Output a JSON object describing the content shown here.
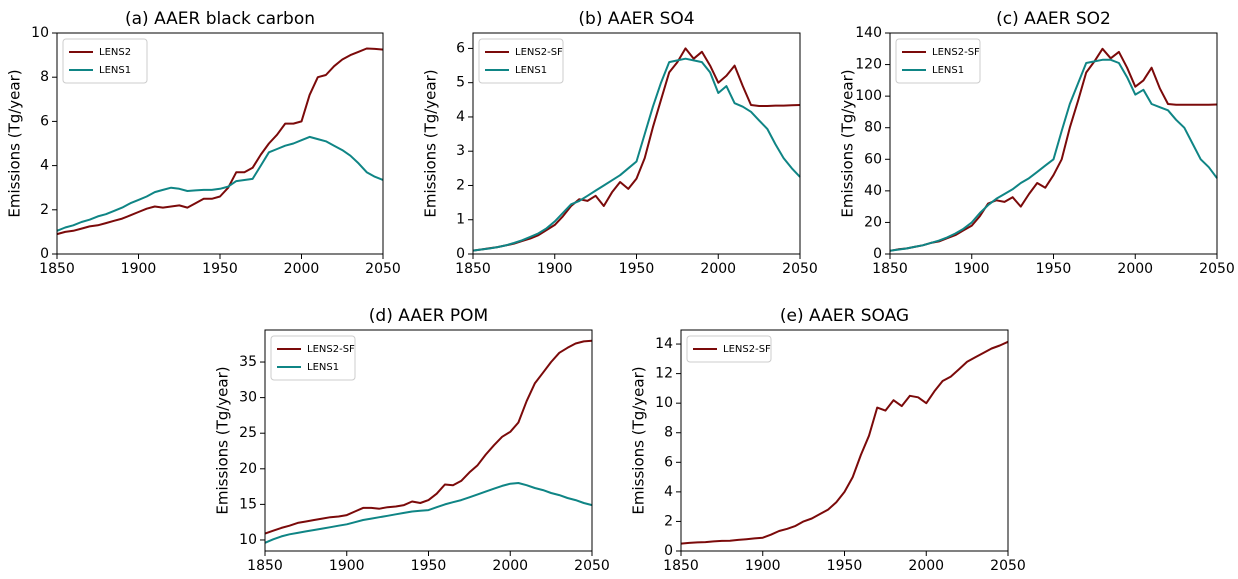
{
  "chart_data": [
    {
      "type": "line",
      "title": "(a) AAER black carbon",
      "y_label": "Emissions (Tg/year)",
      "legend": "upper left",
      "x": [
        1850,
        1855,
        1860,
        1865,
        1870,
        1875,
        1880,
        1885,
        1890,
        1895,
        1900,
        1905,
        1910,
        1915,
        1920,
        1925,
        1930,
        1935,
        1940,
        1945,
        1950,
        1955,
        1960,
        1965,
        1970,
        1975,
        1980,
        1985,
        1990,
        1995,
        2000,
        2005,
        2010,
        2015,
        2020,
        2025,
        2030,
        2035,
        2040,
        2045,
        2050
      ],
      "xlim": [
        1850,
        2050
      ],
      "xticks": [
        1850,
        1900,
        1950,
        2000,
        2050
      ],
      "ylim": [
        0,
        10
      ],
      "yticks": [
        0,
        2,
        4,
        6,
        8,
        10
      ],
      "series": [
        {
          "name": "LENS2",
          "color": "#7b0a0a",
          "values": [
            0.9,
            1.0,
            1.05,
            1.15,
            1.25,
            1.3,
            1.4,
            1.5,
            1.6,
            1.75,
            1.9,
            2.05,
            2.15,
            2.1,
            2.15,
            2.2,
            2.1,
            2.3,
            2.5,
            2.5,
            2.6,
            3.0,
            3.7,
            3.7,
            3.9,
            4.5,
            5.0,
            5.4,
            5.9,
            5.9,
            6.0,
            7.2,
            8.0,
            8.1,
            8.5,
            8.8,
            9.0,
            9.15,
            9.3,
            9.28,
            9.25
          ]
        },
        {
          "name": "LENS1",
          "color": "#0f8585",
          "values": [
            1.05,
            1.2,
            1.3,
            1.45,
            1.55,
            1.7,
            1.8,
            1.95,
            2.1,
            2.3,
            2.45,
            2.6,
            2.8,
            2.9,
            3.0,
            2.95,
            2.85,
            2.88,
            2.9,
            2.9,
            2.95,
            3.05,
            3.3,
            3.35,
            3.4,
            4.0,
            4.6,
            4.75,
            4.9,
            5.0,
            5.15,
            5.3,
            5.2,
            5.1,
            4.9,
            4.7,
            4.45,
            4.1,
            3.7,
            3.5,
            3.35
          ]
        }
      ]
    },
    {
      "type": "line",
      "title": "(b) AAER SO4",
      "y_label": "Emissions (Tg/year)",
      "legend": "upper left",
      "x": [
        1850,
        1855,
        1860,
        1865,
        1870,
        1875,
        1880,
        1885,
        1890,
        1895,
        1900,
        1905,
        1910,
        1915,
        1920,
        1925,
        1930,
        1935,
        1940,
        1945,
        1950,
        1955,
        1960,
        1965,
        1970,
        1975,
        1980,
        1985,
        1990,
        1995,
        2000,
        2005,
        2010,
        2015,
        2020,
        2025,
        2030,
        2035,
        2040,
        2045,
        2050
      ],
      "xlim": [
        1850,
        2050
      ],
      "xticks": [
        1850,
        1900,
        1950,
        2000,
        2050
      ],
      "ylim": [
        0,
        6.45
      ],
      "yticks": [
        0,
        1,
        2,
        3,
        4,
        5,
        6
      ],
      "series": [
        {
          "name": "LENS2-SF",
          "color": "#7b0a0a",
          "values": [
            0.1,
            0.13,
            0.17,
            0.2,
            0.25,
            0.3,
            0.38,
            0.45,
            0.55,
            0.7,
            0.85,
            1.1,
            1.4,
            1.6,
            1.55,
            1.7,
            1.4,
            1.8,
            2.1,
            1.9,
            2.2,
            2.8,
            3.7,
            4.5,
            5.3,
            5.6,
            6.0,
            5.7,
            5.9,
            5.5,
            5.0,
            5.2,
            5.5,
            4.9,
            4.35,
            4.32,
            4.32,
            4.33,
            4.33,
            4.34,
            4.35
          ]
        },
        {
          "name": "LENS1",
          "color": "#0f8585",
          "values": [
            0.1,
            0.13,
            0.16,
            0.2,
            0.25,
            0.32,
            0.4,
            0.5,
            0.6,
            0.75,
            0.95,
            1.2,
            1.45,
            1.55,
            1.7,
            1.85,
            2.0,
            2.15,
            2.3,
            2.5,
            2.7,
            3.5,
            4.3,
            5.0,
            5.6,
            5.65,
            5.7,
            5.65,
            5.6,
            5.3,
            4.7,
            4.9,
            4.4,
            4.3,
            4.15,
            3.9,
            3.65,
            3.2,
            2.8,
            2.5,
            2.25
          ]
        }
      ]
    },
    {
      "type": "line",
      "title": "(c) AAER SO2",
      "y_label": "Emissions (Tg/year)",
      "legend": "upper left",
      "x": [
        1850,
        1855,
        1860,
        1865,
        1870,
        1875,
        1880,
        1885,
        1890,
        1895,
        1900,
        1905,
        1910,
        1915,
        1920,
        1925,
        1930,
        1935,
        1940,
        1945,
        1950,
        1955,
        1960,
        1965,
        1970,
        1975,
        1980,
        1985,
        1990,
        1995,
        2000,
        2005,
        2010,
        2015,
        2020,
        2025,
        2030,
        2035,
        2040,
        2045,
        2050
      ],
      "xlim": [
        1850,
        2050
      ],
      "xticks": [
        1850,
        1900,
        1950,
        2000,
        2050
      ],
      "ylim": [
        0,
        140
      ],
      "yticks": [
        0,
        20,
        40,
        60,
        80,
        100,
        120,
        140
      ],
      "series": [
        {
          "name": "LENS2-SF",
          "color": "#7b0a0a",
          "values": [
            2,
            3,
            3.5,
            4.5,
            5.5,
            7,
            8,
            10,
            12,
            15,
            18,
            24,
            32,
            34,
            33,
            36,
            30,
            38,
            45,
            42,
            50,
            60,
            80,
            97,
            115,
            122,
            130,
            124,
            128,
            118,
            106,
            110,
            118,
            105,
            95,
            94.5,
            94.5,
            94.5,
            94.5,
            94.6,
            94.7
          ]
        },
        {
          "name": "LENS1",
          "color": "#0f8585",
          "values": [
            2,
            2.8,
            3.5,
            4.5,
            5.5,
            7,
            8.5,
            10.5,
            13,
            16,
            20,
            26,
            31,
            35,
            38,
            41,
            45,
            48,
            52,
            56,
            60,
            78,
            95,
            108,
            121,
            122,
            123,
            123,
            121,
            112,
            101,
            104,
            95,
            93,
            91,
            85,
            80,
            70,
            60,
            55,
            48
          ]
        }
      ]
    },
    {
      "type": "line",
      "title": "(d) AAER POM",
      "y_label": "Emissions (Tg/year)",
      "legend": "upper left",
      "x": [
        1850,
        1855,
        1860,
        1865,
        1870,
        1875,
        1880,
        1885,
        1890,
        1895,
        1900,
        1905,
        1910,
        1915,
        1920,
        1925,
        1930,
        1935,
        1940,
        1945,
        1950,
        1955,
        1960,
        1965,
        1970,
        1975,
        1980,
        1985,
        1990,
        1995,
        2000,
        2005,
        2010,
        2015,
        2020,
        2025,
        2030,
        2035,
        2040,
        2045,
        2050
      ],
      "xlim": [
        1850,
        2050
      ],
      "xticks": [
        1850,
        1900,
        1950,
        2000,
        2050
      ],
      "ylim": [
        8.45,
        39.5
      ],
      "yticks": [
        10,
        15,
        20,
        25,
        30,
        35
      ],
      "series": [
        {
          "name": "LENS2-SF",
          "color": "#7b0a0a",
          "values": [
            10.9,
            11.3,
            11.7,
            12.0,
            12.4,
            12.6,
            12.8,
            13.0,
            13.2,
            13.3,
            13.5,
            14.0,
            14.5,
            14.5,
            14.4,
            14.6,
            14.7,
            14.9,
            15.4,
            15.2,
            15.6,
            16.5,
            17.8,
            17.7,
            18.3,
            19.5,
            20.5,
            22.0,
            23.3,
            24.5,
            25.2,
            26.5,
            29.5,
            32,
            33.5,
            35,
            36.3,
            37,
            37.6,
            37.9,
            38
          ]
        },
        {
          "name": "LENS1",
          "color": "#0f8585",
          "values": [
            9.6,
            10.1,
            10.5,
            10.8,
            11.0,
            11.2,
            11.4,
            11.6,
            11.8,
            12.0,
            12.2,
            12.5,
            12.8,
            13.0,
            13.2,
            13.4,
            13.6,
            13.8,
            14.0,
            14.1,
            14.2,
            14.6,
            15.0,
            15.3,
            15.6,
            16.0,
            16.4,
            16.8,
            17.2,
            17.6,
            17.9,
            18.0,
            17.7,
            17.3,
            17.0,
            16.6,
            16.3,
            15.9,
            15.6,
            15.2,
            14.9
          ]
        }
      ]
    },
    {
      "type": "line",
      "title": "(e) AAER SOAG",
      "y_label": "Emissions (Tg/year)",
      "legend": "upper left",
      "x": [
        1850,
        1855,
        1860,
        1865,
        1870,
        1875,
        1880,
        1885,
        1890,
        1895,
        1900,
        1905,
        1910,
        1915,
        1920,
        1925,
        1930,
        1935,
        1940,
        1945,
        1950,
        1955,
        1960,
        1965,
        1970,
        1975,
        1980,
        1985,
        1990,
        1995,
        2000,
        2005,
        2010,
        2015,
        2020,
        2025,
        2030,
        2035,
        2040,
        2045,
        2050
      ],
      "xlim": [
        1850,
        2050
      ],
      "xticks": [
        1850,
        1900,
        1950,
        2000,
        2050
      ],
      "ylim": [
        0,
        14.95
      ],
      "yticks": [
        0,
        2,
        4,
        6,
        8,
        10,
        12,
        14
      ],
      "series": [
        {
          "name": "LENS2-SF",
          "color": "#7b0a0a",
          "values": [
            0.5,
            0.55,
            0.58,
            0.6,
            0.65,
            0.68,
            0.7,
            0.75,
            0.8,
            0.85,
            0.9,
            1.1,
            1.35,
            1.5,
            1.7,
            2.0,
            2.2,
            2.5,
            2.8,
            3.3,
            4.0,
            5.0,
            6.5,
            7.8,
            9.7,
            9.5,
            10.2,
            9.8,
            10.5,
            10.4,
            10.0,
            10.8,
            11.5,
            11.8,
            12.3,
            12.8,
            13.1,
            13.4,
            13.7,
            13.9,
            14.15
          ]
        }
      ]
    }
  ]
}
